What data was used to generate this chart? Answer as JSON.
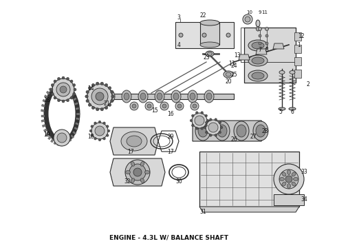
{
  "caption": "ENGINE - 4.3L W/ BALANCE SHAFT",
  "caption_fontsize": 6.5,
  "caption_fontweight": "bold",
  "bg": "#ffffff",
  "fg": "#2a2a2a",
  "light_gray": "#c8c8c8",
  "mid_gray": "#a0a0a0",
  "dark_gray": "#555555"
}
